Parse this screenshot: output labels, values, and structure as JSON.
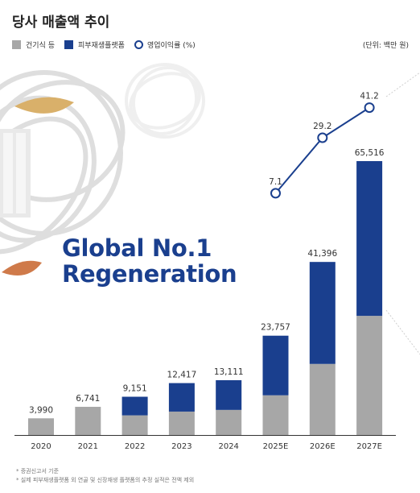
{
  "title": "당사 매출액 추이",
  "unit_label": "(단위: 백만 원)",
  "brand_text": [
    "Global No.1",
    "Regeneration"
  ],
  "notes": [
    "* 증권신고서 기준",
    "* 실제 피부재생플랫폼 외 연골 및 신장재생 플랫폼의 추정 실적은 전액 제외"
  ],
  "colors": {
    "gray": "#a7a7a7",
    "blue": "#1a3f8e"
  },
  "chart_data": {
    "type": "bar",
    "categories": [
      "2020",
      "2021",
      "2022",
      "2023",
      "2024",
      "2025E",
      "2026E",
      "2027E"
    ],
    "series": [
      {
        "name": "건기식 등",
        "values": [
          3990,
          6741,
          4700,
          5600,
          6000,
          9500,
          17000,
          28500
        ]
      },
      {
        "name": "피부재생플랫폼",
        "values": [
          0,
          0,
          4451,
          6817,
          7111,
          14257,
          24396,
          37016
        ]
      }
    ],
    "totals": [
      "3,990",
      "6,741",
      "9,151",
      "12,417",
      "13,111",
      "23,757",
      "41,396",
      "65,516"
    ],
    "line_series": {
      "name": "영업이익률 (%)",
      "categories": [
        "2025E",
        "2026E",
        "2027E"
      ],
      "values": [
        7.1,
        29.2,
        41.2
      ],
      "labels": [
        "7.1",
        "29.2",
        "41.2"
      ]
    },
    "legend": [
      "건기식 등",
      "피부재생플랫폼",
      "영업이익률 (%)"
    ],
    "legend_position": "top-left",
    "ylim": [
      0,
      70000
    ],
    "grid": false
  }
}
